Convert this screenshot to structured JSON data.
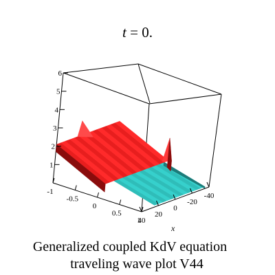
{
  "chart_data": {
    "type": "surface",
    "title_var": "t",
    "title_rest": " = 0.",
    "xlabel": "x",
    "caption_line1": "Generalized coupled KdV equation",
    "caption_line2": "traveling wave plot V44",
    "z_ticks": [
      "1",
      "2",
      "3",
      "4",
      "5",
      "6"
    ],
    "y_ticks": [
      "-1",
      "-0.5",
      "0",
      "0.5",
      "1"
    ],
    "x_ticks": [
      "40",
      "20",
      "0",
      "-20",
      "-40"
    ],
    "xlim": [
      -40,
      40
    ],
    "ylim": [
      -1,
      1
    ],
    "zlim": [
      0,
      6
    ],
    "series": [
      {
        "color": "#ff2a2a",
        "dark": "#8a0c0c",
        "level": 2.1,
        "front_level": 0.75
      },
      {
        "color": "#36d0cc",
        "dark": "#1d7b79",
        "level": 0.1,
        "front_level": 0.1
      }
    ],
    "peak_level": 2.3,
    "peak_x": 15
  }
}
